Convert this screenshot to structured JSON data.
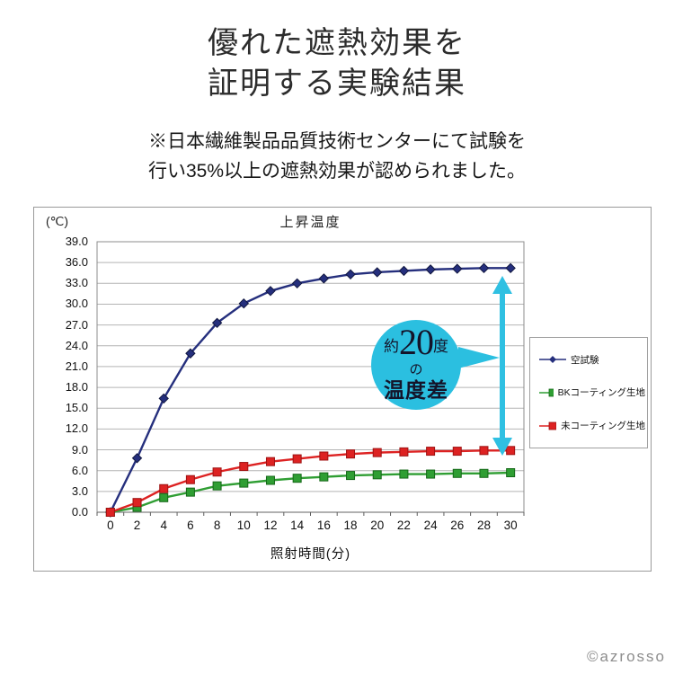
{
  "page": {
    "title_line1": "優れた遮熱効果を",
    "title_line2": "証明する実験結果",
    "note_line1": "※日本繊維製品品質技術センターにて試験を",
    "note_line2": "行い35%以上の遮熱効果が認められました。",
    "copyright": "©azrosso"
  },
  "chart_data": {
    "type": "line",
    "title": "上昇温度",
    "y_axis_unit": "(℃)",
    "xlabel": "照射時間(分)",
    "ylabel": "",
    "ylim": [
      0,
      39
    ],
    "ytick_step": 3.0,
    "ytick_labels": [
      "39.0",
      "36.0",
      "33.0",
      "30.0",
      "27.0",
      "24.0",
      "21.0",
      "18.0",
      "15.0",
      "12.0",
      "9.0",
      "6.0",
      "3.0",
      "0.0"
    ],
    "x": [
      0,
      2,
      4,
      6,
      8,
      10,
      12,
      14,
      16,
      18,
      20,
      22,
      24,
      26,
      28,
      30
    ],
    "xtick_labels": [
      "0",
      "2",
      "4",
      "6",
      "8",
      "10",
      "12",
      "14",
      "16",
      "18",
      "20",
      "22",
      "24",
      "26",
      "28",
      "30"
    ],
    "grid": true,
    "legend_position": "right",
    "series": [
      {
        "name": "空試験",
        "color": "#252f7d",
        "marker": "diamond",
        "marker_border": "#11173f",
        "values": [
          0.0,
          7.8,
          16.4,
          22.9,
          27.3,
          30.1,
          31.9,
          33.0,
          33.7,
          34.3,
          34.6,
          34.8,
          35.0,
          35.1,
          35.2,
          35.2
        ]
      },
      {
        "name": "BKコーティング生地",
        "color": "#2f9e33",
        "marker": "square",
        "marker_border": "#156818",
        "values": [
          0.0,
          0.7,
          2.1,
          2.9,
          3.8,
          4.2,
          4.6,
          4.9,
          5.1,
          5.3,
          5.4,
          5.5,
          5.5,
          5.6,
          5.6,
          5.7
        ]
      },
      {
        "name": "未コーティング生地",
        "color": "#dd2222",
        "marker": "square",
        "marker_border": "#9e1212",
        "values": [
          0.0,
          1.4,
          3.4,
          4.7,
          5.8,
          6.6,
          7.3,
          7.7,
          8.1,
          8.4,
          8.6,
          8.7,
          8.8,
          8.8,
          8.9,
          8.9
        ]
      }
    ]
  },
  "annotation": {
    "prefix": "約",
    "value": "20",
    "suffix": "度",
    "middle": "の",
    "label": "温度差",
    "bubble_color": "#2bbfe0",
    "arrow_color": "#2fc0e2",
    "text_color": "#14142a"
  }
}
